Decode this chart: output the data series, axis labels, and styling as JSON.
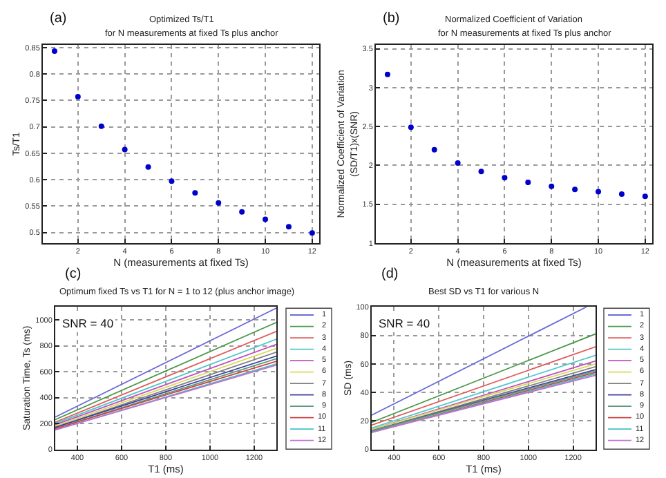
{
  "chart_data": [
    {
      "type": "scatter",
      "title": "Optimized Ts/T1",
      "subtitle": "for N measurements at fixed Ts plus anchor",
      "xlabel": "N (measurements at fixed Ts)",
      "ylabel": "Ts/T1",
      "annotations": [
        "(a)"
      ],
      "x": [
        1,
        2,
        3,
        4,
        5,
        6,
        7,
        8,
        9,
        10,
        11,
        12
      ],
      "series": [
        {
          "color": "#0000cc",
          "values": [
            0.843,
            0.757,
            0.701,
            0.657,
            0.624,
            0.597,
            0.575,
            0.556,
            0.539,
            0.525,
            0.511,
            0.499
          ]
        }
      ],
      "xlim": [
        0.5,
        12.3
      ],
      "xticks": [
        2,
        4,
        6,
        8,
        10,
        12
      ],
      "ylim": [
        0.48,
        0.855
      ],
      "yticks": [
        0.5,
        0.55,
        0.6,
        0.65,
        0.7,
        0.75,
        0.8,
        0.85
      ],
      "grid": true,
      "marker": "circle",
      "legend": false
    },
    {
      "type": "scatter",
      "title": "Normalized Coefficient of Variation",
      "subtitle": "for N measurements at fixed Ts plus anchor",
      "xlabel": "N (measurements at fixed Ts)",
      "ylabel": "Normalized Coefficient of Variation\n(SD/T1)x(SNR)",
      "annotations": [
        "(b)"
      ],
      "x": [
        1,
        2,
        3,
        4,
        5,
        6,
        7,
        8,
        9,
        10,
        11,
        12
      ],
      "series": [
        {
          "color": "#0000cc",
          "values": [
            3.17,
            2.49,
            2.2,
            2.03,
            1.92,
            1.84,
            1.78,
            1.73,
            1.69,
            1.66,
            1.63,
            1.6
          ]
        }
      ],
      "xlim": [
        0.5,
        12.3
      ],
      "xticks": [
        2,
        4,
        6,
        8,
        10,
        12
      ],
      "ylim": [
        1,
        3.55
      ],
      "yticks": [
        1,
        1.5,
        2,
        2.5,
        3,
        3.5
      ],
      "grid": true,
      "marker": "circle",
      "legend": false
    },
    {
      "type": "line",
      "title": "Optimum fixed Ts vs T1 for N = 1 to 12 (plus anchor image)",
      "xlabel": "T1 (ms)",
      "ylabel": "Saturation Time, Ts (ms)",
      "annotations": [
        "(c)",
        "SNR = 40"
      ],
      "series": [
        {
          "name": "1",
          "color": "#6b6bd6",
          "x": [
            300,
            1300
          ],
          "values": [
            250,
            1090
          ]
        },
        {
          "name": "2",
          "color": "#4a9a4a",
          "x": [
            300,
            1300
          ],
          "values": [
            230,
            980
          ]
        },
        {
          "name": "3",
          "color": "#e05a5a",
          "x": [
            300,
            1300
          ],
          "values": [
            210,
            910
          ]
        },
        {
          "name": "4",
          "color": "#50c8c8",
          "x": [
            300,
            1300
          ],
          "values": [
            200,
            850
          ]
        },
        {
          "name": "5",
          "color": "#c050c0",
          "x": [
            300,
            1300
          ],
          "values": [
            190,
            810
          ]
        },
        {
          "name": "6",
          "color": "#d8d860",
          "x": [
            300,
            1300
          ],
          "values": [
            180,
            780
          ]
        },
        {
          "name": "7",
          "color": "#808080",
          "x": [
            300,
            1300
          ],
          "values": [
            170,
            750
          ]
        },
        {
          "name": "8",
          "color": "#4040a0",
          "x": [
            300,
            1300
          ],
          "values": [
            170,
            720
          ]
        },
        {
          "name": "9",
          "color": "#5a9a7a",
          "x": [
            300,
            1300
          ],
          "values": [
            160,
            700
          ]
        },
        {
          "name": "10",
          "color": "#d04040",
          "x": [
            300,
            1300
          ],
          "values": [
            160,
            680
          ]
        },
        {
          "name": "11",
          "color": "#40c0c0",
          "x": [
            300,
            1300
          ],
          "values": [
            150,
            660
          ]
        },
        {
          "name": "12",
          "color": "#c070d0",
          "x": [
            300,
            1300
          ],
          "values": [
            150,
            650
          ]
        }
      ],
      "xlim": [
        300,
        1300
      ],
      "xticks": [
        400,
        600,
        800,
        1000,
        1200
      ],
      "ylim": [
        0,
        1100
      ],
      "yticks": [
        0,
        200,
        400,
        600,
        800,
        1000
      ],
      "grid": true,
      "marker": "none",
      "line_style": "solid",
      "legend": "right"
    },
    {
      "type": "line",
      "title": "Best SD vs T1 for various N",
      "xlabel": "T1 (ms)",
      "ylabel": "SD (ms)",
      "annotations": [
        "(d)",
        "SNR = 40"
      ],
      "series": [
        {
          "name": "1",
          "color": "#6b6bd6",
          "x": [
            300,
            1260
          ],
          "values": [
            24,
            100
          ]
        },
        {
          "name": "2",
          "color": "#4a9a4a",
          "x": [
            300,
            1300
          ],
          "values": [
            19,
            81
          ]
        },
        {
          "name": "3",
          "color": "#e05a5a",
          "x": [
            300,
            1300
          ],
          "values": [
            17,
            72
          ]
        },
        {
          "name": "4",
          "color": "#50c8c8",
          "x": [
            300,
            1300
          ],
          "values": [
            15,
            66
          ]
        },
        {
          "name": "5",
          "color": "#c050c0",
          "x": [
            300,
            1300
          ],
          "values": [
            14,
            62
          ]
        },
        {
          "name": "6",
          "color": "#d8d860",
          "x": [
            300,
            1300
          ],
          "values": [
            14,
            60
          ]
        },
        {
          "name": "7",
          "color": "#808080",
          "x": [
            300,
            1300
          ],
          "values": [
            13,
            58
          ]
        },
        {
          "name": "8",
          "color": "#4040a0",
          "x": [
            300,
            1300
          ],
          "values": [
            13,
            56
          ]
        },
        {
          "name": "9",
          "color": "#5a9a7a",
          "x": [
            300,
            1300
          ],
          "values": [
            13,
            55
          ]
        },
        {
          "name": "10",
          "color": "#d04040",
          "x": [
            300,
            1300
          ],
          "values": [
            12,
            54
          ]
        },
        {
          "name": "11",
          "color": "#40c0c0",
          "x": [
            300,
            1300
          ],
          "values": [
            12,
            53
          ]
        },
        {
          "name": "12",
          "color": "#c070d0",
          "x": [
            300,
            1300
          ],
          "values": [
            12,
            52
          ]
        }
      ],
      "xlim": [
        300,
        1300
      ],
      "xticks": [
        400,
        600,
        800,
        1000,
        1200
      ],
      "ylim": [
        0,
        100
      ],
      "yticks": [
        0,
        20,
        40,
        60,
        80,
        100
      ],
      "grid": true,
      "marker": "none",
      "line_style": "solid",
      "legend": "right"
    }
  ]
}
